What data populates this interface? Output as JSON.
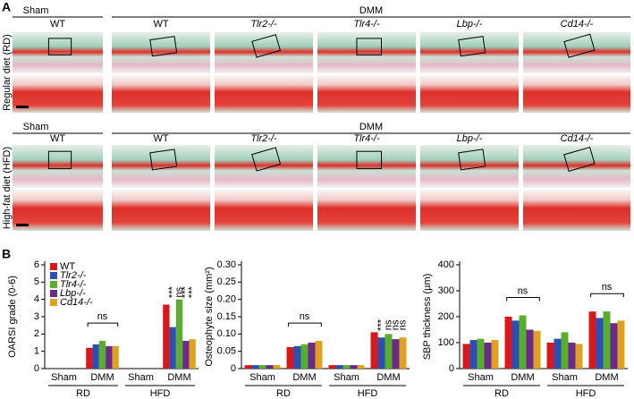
{
  "panel_a": {
    "label": "A",
    "rows": [
      {
        "diet": "Regular diet (RD)",
        "sham": "Sham",
        "dmm": "DMM",
        "columns": [
          "WT",
          "WT",
          "Tlr2-/-",
          "Tlr4-/-",
          "Lbp-/-",
          "Cd14-/-"
        ]
      },
      {
        "diet": "High-fat diet (HFD)",
        "sham": "Sham",
        "dmm": "DMM",
        "columns": [
          "WT",
          "WT",
          "Tlr2-/-",
          "Tlr4-/-",
          "Lbp-/-",
          "Cd14-/-"
        ]
      }
    ]
  },
  "panel_b": {
    "label": "B"
  },
  "chart_data": [
    {
      "type": "bar",
      "y_label": "OARSI grade (0-6)",
      "categories": [
        "Sham",
        "DMM",
        "Sham",
        "DMM"
      ],
      "category_groups": [
        "RD",
        "HFD"
      ],
      "ylim": [
        0,
        6
      ],
      "yticks": [
        0,
        1,
        2,
        3,
        4,
        5,
        6
      ],
      "legend": "top-left",
      "bracket_labels": [
        null,
        "ns",
        null,
        null
      ],
      "series": [
        {
          "name": "WT",
          "color": "#d7191c",
          "values": [
            0,
            1.2,
            0,
            3.7
          ]
        },
        {
          "name": "Tlr2-/-",
          "color": "#2b4fb5",
          "values": [
            0,
            1.4,
            0,
            2.4
          ],
          "labels": [
            null,
            null,
            null,
            "***"
          ]
        },
        {
          "name": "Tlr4-/-",
          "color": "#5aae2e",
          "values": [
            0,
            1.6,
            0,
            4.0
          ],
          "labels": [
            null,
            null,
            null,
            "ns"
          ]
        },
        {
          "name": "Lbp-/-",
          "color": "#6a2a8a",
          "values": [
            0,
            1.3,
            0,
            1.6
          ],
          "labels": [
            null,
            null,
            null,
            "***"
          ]
        },
        {
          "name": "Cd14-/-",
          "color": "#e0a020",
          "values": [
            0,
            1.3,
            0,
            1.7
          ],
          "labels": [
            null,
            null,
            null,
            "***"
          ]
        }
      ]
    },
    {
      "type": "bar",
      "y_label": "Osteophyte size (mm²)",
      "categories": [
        "Sham",
        "DMM",
        "Sham",
        "DMM"
      ],
      "category_groups": [
        "RD",
        "HFD"
      ],
      "ylim": [
        0,
        0.3
      ],
      "yticks": [
        0,
        0.05,
        {
          "value": 0.1,
          "label": "0.10"
        },
        0.15,
        {
          "value": 0.2,
          "label": "0.20"
        },
        0.25,
        {
          "value": 0.3,
          "label": "0.30"
        }
      ],
      "bracket_labels": [
        null,
        "ns",
        null,
        null
      ],
      "series": [
        {
          "color": "#d7191c",
          "values": [
            0.01,
            0.062,
            0.01,
            0.105
          ]
        },
        {
          "color": "#2b4fb5",
          "values": [
            0.01,
            0.065,
            0.01,
            0.09
          ],
          "labels": [
            null,
            null,
            null,
            "***"
          ]
        },
        {
          "color": "#5aae2e",
          "values": [
            0.01,
            0.07,
            0.01,
            0.1
          ],
          "labels": [
            null,
            null,
            null,
            "ns"
          ]
        },
        {
          "color": "#6a2a8a",
          "values": [
            0.01,
            0.075,
            0.01,
            0.085
          ],
          "labels": [
            null,
            null,
            null,
            "ns"
          ]
        },
        {
          "color": "#e0a020",
          "values": [
            0.01,
            0.08,
            0.01,
            0.09
          ],
          "labels": [
            null,
            null,
            null,
            "ns"
          ]
        }
      ]
    },
    {
      "type": "bar",
      "y_label": "SBP thickness (µm)",
      "categories": [
        "Sham",
        "DMM",
        "Sham",
        "DMM"
      ],
      "category_groups": [
        "RD",
        "HFD"
      ],
      "ylim": [
        0,
        400
      ],
      "yticks": [
        0,
        100,
        200,
        300,
        400
      ],
      "bracket_labels": [
        null,
        "ns",
        null,
        "ns"
      ],
      "series": [
        {
          "color": "#d7191c",
          "values": [
            95,
            200,
            100,
            220
          ]
        },
        {
          "color": "#2b4fb5",
          "values": [
            110,
            185,
            115,
            195
          ]
        },
        {
          "color": "#5aae2e",
          "values": [
            115,
            205,
            140,
            220
          ]
        },
        {
          "color": "#6a2a8a",
          "values": [
            100,
            150,
            100,
            175
          ]
        },
        {
          "color": "#e0a020",
          "values": [
            110,
            145,
            95,
            185
          ]
        }
      ]
    }
  ]
}
